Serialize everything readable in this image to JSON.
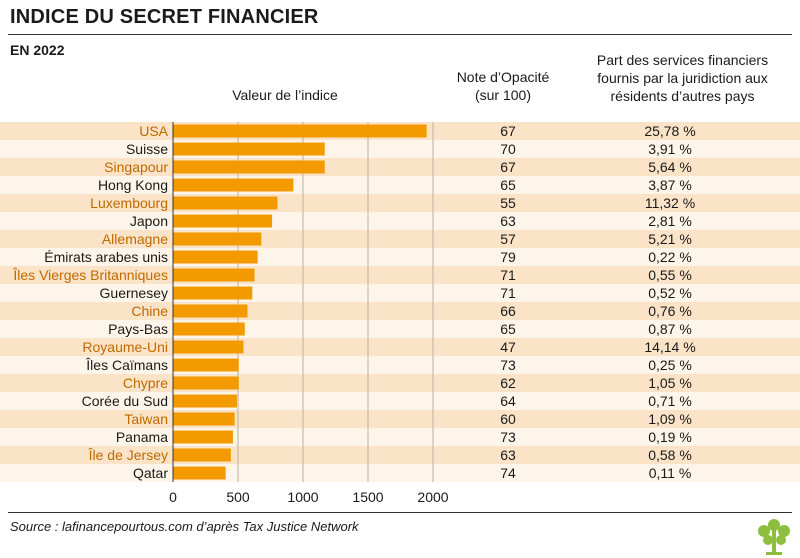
{
  "header": {
    "title": "INDICE DU SECRET FINANCIER",
    "subtitle": "EN 2022"
  },
  "columns": {
    "index_header": "Valeur de l’indice",
    "opacity_header_line1": "Note d’Opacité",
    "opacity_header_line2": "(sur 100)",
    "share_header_line1": "Part des services financiers",
    "share_header_line2": "fournis par la juridiction aux",
    "share_header_line3": "résidents d’autres pays"
  },
  "chart_data": {
    "type": "bar",
    "orientation": "horizontal",
    "categories": [
      "USA",
      "Suisse",
      "Singapour",
      "Hong Kong",
      "Luxembourg",
      "Japon",
      "Allemagne",
      "Émirats arabes unis",
      "Îles Vierges Britanniques",
      "Guernesey",
      "Chine",
      "Pays-Bas",
      "Royaume-Uni",
      "Îles Caïmans",
      "Chypre",
      "Corée du Sud",
      "Taiwan",
      "Panama",
      "Île de Jersey",
      "Qatar"
    ],
    "values": [
      1951,
      1167,
      1167,
      926,
      804,
      762,
      679,
      651,
      627,
      610,
      573,
      552,
      542,
      506,
      506,
      492,
      474,
      461,
      445,
      405
    ],
    "opacity_scores": [
      "67",
      "70",
      "67",
      "65",
      "55",
      "63",
      "57",
      "79",
      "71",
      "71",
      "66",
      "65",
      "47",
      "73",
      "62",
      "64",
      "60",
      "73",
      "63",
      "74"
    ],
    "shares": [
      "25,78 %",
      "3,91 %",
      "5,64 %",
      "3,87 %",
      "11,32 %",
      "2,81 %",
      "5,21 %",
      "0,22 %",
      "0,55 %",
      "0,52 %",
      "0,76 %",
      "0,87 %",
      "14,14 %",
      "0,25 %",
      "1,05 %",
      "0,71 %",
      "1,09 %",
      "0,19 %",
      "0,58 %",
      "0,11 %"
    ],
    "xlim": [
      0,
      2000
    ],
    "xticks": [
      "0",
      "500",
      "1000",
      "1500",
      "2000"
    ],
    "grid": true,
    "bar_color": "#f29a00",
    "label_highlight_color": "#c06a00",
    "highlighted": [
      true,
      false,
      true,
      false,
      true,
      false,
      true,
      false,
      true,
      false,
      true,
      false,
      true,
      false,
      true,
      false,
      true,
      false,
      true,
      false
    ]
  },
  "footer": {
    "source": "Source : lafinancepourtous.com d’après Tax Justice Network",
    "logo_icon": "tree-logo-icon",
    "logo_color": "#8cbf3f"
  }
}
